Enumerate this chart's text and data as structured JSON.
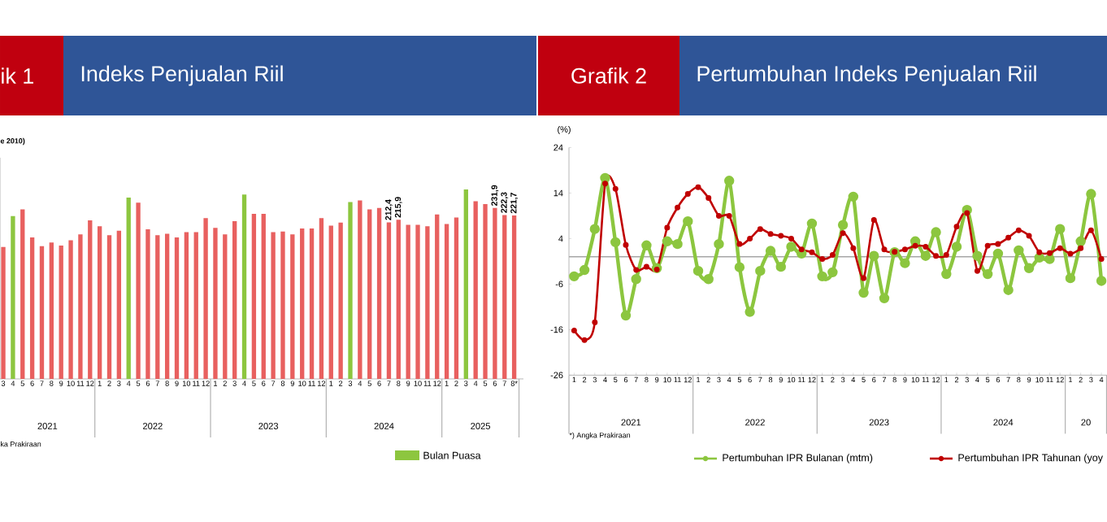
{
  "chart_data": [
    {
      "type": "bar",
      "title": "Indeks Penjualan Riil",
      "subtitle": "e 2010)",
      "annotations": [
        "ik 1",
        "ka Prakiraan",
        "2021",
        "2022",
        "2023",
        "2024",
        "2025"
      ],
      "categories": [
        "3",
        "4",
        "5",
        "6",
        "7",
        "8",
        "9",
        "10",
        "11",
        "12",
        "1",
        "2",
        "3",
        "4",
        "5",
        "6",
        "7",
        "8",
        "9",
        "10",
        "11",
        "12",
        "1",
        "2",
        "3",
        "4",
        "5",
        "6",
        "7",
        "8",
        "9",
        "10",
        "11",
        "12",
        "1",
        "2",
        "3",
        "4",
        "5",
        "6",
        "7",
        "8",
        "9",
        "10",
        "11",
        "12",
        "1",
        "2",
        "3",
        "4",
        "5",
        "6",
        "7",
        "8*"
      ],
      "ylim": [
        0,
        300
      ],
      "tick_labels": "x",
      "legend": "bottom right",
      "series": [
        {
          "color": "#e8605f",
          "values": [
            179,
            null,
            230,
            192,
            180,
            185,
            181,
            188,
            196,
            215,
            207,
            195,
            201,
            null,
            239,
            203,
            195,
            197,
            192,
            199,
            199,
            218,
            205,
            196,
            214,
            null,
            224,
            224,
            199,
            200,
            196,
            204,
            204,
            218,
            208,
            212,
            null,
            242,
            230,
            232,
            212.4,
            215.9,
            209,
            209,
            207,
            223,
            210,
            219,
            null,
            241,
            237,
            231.9,
            222.3,
            221.7
          ],
          "value_labels": [
            null,
            null,
            null,
            null,
            null,
            null,
            null,
            null,
            null,
            null,
            null,
            null,
            null,
            null,
            null,
            null,
            null,
            null,
            null,
            null,
            null,
            null,
            null,
            null,
            null,
            null,
            null,
            null,
            null,
            null,
            null,
            null,
            null,
            null,
            null,
            null,
            null,
            null,
            null,
            null,
            "212,4",
            "215,9",
            null,
            null,
            null,
            null,
            null,
            null,
            null,
            null,
            null,
            "231,9",
            "222,3",
            "221,7"
          ]
        },
        {
          "name": "Bulan Puasa",
          "color": "#8dc63f",
          "values": [
            null,
            221,
            null,
            null,
            null,
            null,
            null,
            null,
            null,
            null,
            null,
            null,
            null,
            246,
            null,
            null,
            null,
            null,
            null,
            null,
            null,
            null,
            null,
            null,
            null,
            250,
            null,
            null,
            null,
            null,
            null,
            null,
            null,
            null,
            null,
            null,
            240,
            null,
            null,
            null,
            null,
            null,
            null,
            null,
            null,
            null,
            null,
            null,
            257,
            null,
            null,
            null,
            null,
            null
          ]
        }
      ]
    },
    {
      "type": "line",
      "title": "Pertumbuhan Indeks Penjualan Riil",
      "ylabel": "(%)",
      "annotations": [
        "Grafik 2",
        "*) Angka Prakiraan",
        "2021",
        "2022",
        "2023",
        "2024",
        "20"
      ],
      "categories": [
        "1",
        "2",
        "3",
        "4",
        "5",
        "6",
        "7",
        "8",
        "9",
        "10",
        "11",
        "12",
        "1",
        "2",
        "3",
        "4",
        "5",
        "6",
        "7",
        "8",
        "9",
        "10",
        "11",
        "12",
        "1",
        "2",
        "3",
        "4",
        "5",
        "6",
        "7",
        "8",
        "9",
        "10",
        "11",
        "12",
        "1",
        "2",
        "3",
        "4",
        "5",
        "6",
        "7",
        "8",
        "9",
        "10",
        "11",
        "12",
        "1",
        "2",
        "3",
        "4"
      ],
      "ylim": [
        -26,
        24
      ],
      "yticks": [
        24,
        14,
        4,
        -6,
        -16,
        -26
      ],
      "legend": "bottom",
      "marker": "circle",
      "line_style": "solid",
      "ref_lines": [
        {
          "axis": "y",
          "value": 0,
          "color": "#a6a6a6"
        }
      ],
      "series": [
        {
          "name": "Pertumbuhan IPR Bulanan (mtm)",
          "color": "#8cc63f",
          "values": [
            -4.3,
            -2.9,
            6.1,
            17.3,
            3.2,
            -12.9,
            -4.9,
            2.5,
            -2.5,
            3.4,
            2.8,
            7.8,
            -3.1,
            -4.9,
            2.8,
            16.7,
            -2.3,
            -12.1,
            -3.1,
            1.3,
            -2.2,
            2.2,
            0.7,
            7.3,
            -4.3,
            -3.4,
            7.0,
            13.2,
            -7.9,
            0.2,
            -9.1,
            1.0,
            -1.4,
            3.4,
            0.2,
            5.4,
            -3.8,
            2.2,
            10.3,
            0.2,
            -3.8,
            0.7,
            -7.3,
            1.4,
            -2.5,
            -0.2,
            -0.5,
            6.1,
            -4.7,
            3.4,
            13.8,
            -5.3
          ]
        },
        {
          "name": "Pertumbuhan IPR Tahunan (yoy",
          "color": "#c00000",
          "values": [
            -16.2,
            -18.3,
            -14.4,
            16.1,
            14.9,
            2.6,
            -2.9,
            -2.2,
            -2.8,
            6.4,
            10.8,
            13.8,
            15.3,
            12.9,
            9.0,
            9.0,
            2.8,
            4.0,
            6.1,
            5.0,
            4.6,
            4.0,
            1.6,
            1.0,
            -0.5,
            0.4,
            5.2,
            1.9,
            -4.7,
            8.1,
            1.6,
            1.1,
            1.6,
            2.4,
            2.2,
            0.2,
            0.4,
            6.6,
            9.6,
            -3.1,
            2.4,
            2.8,
            4.2,
            5.8,
            4.6,
            1.0,
            0.8,
            1.9,
            0.7,
            1.9,
            5.8,
            -0.5
          ]
        }
      ]
    }
  ]
}
